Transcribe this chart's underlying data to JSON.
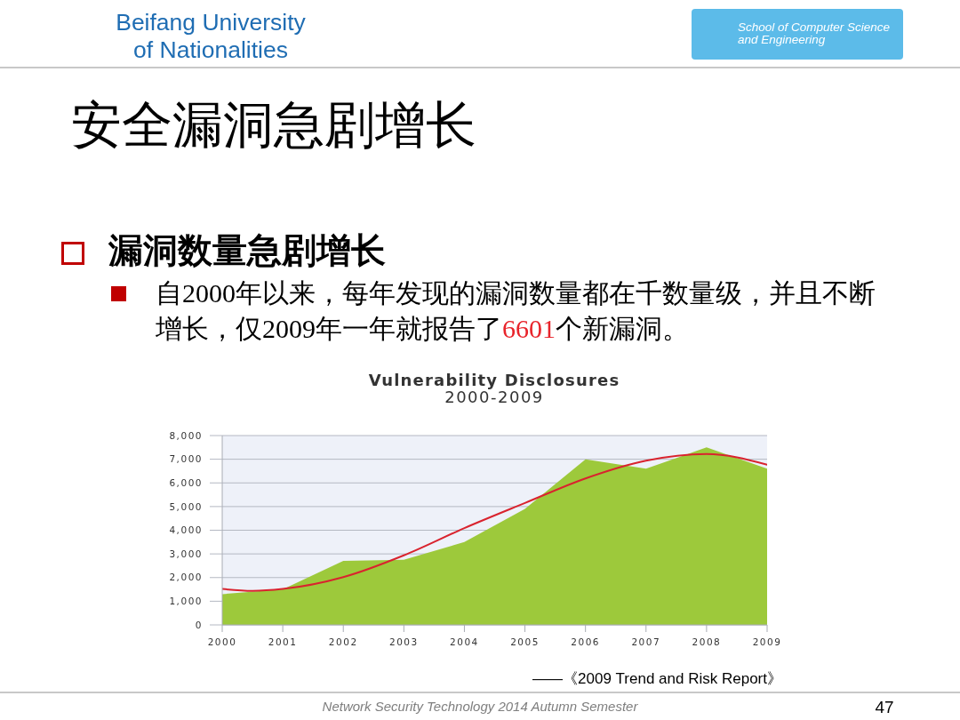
{
  "chart_data": {
    "type": "area",
    "title": "Vulnerability Disclosures",
    "subtitle": "2000-2009",
    "x": [
      2000,
      2001,
      2002,
      2003,
      2004,
      2005,
      2006,
      2007,
      2008,
      2009
    ],
    "xlim": [
      2000,
      2009
    ],
    "xticks": [
      2000,
      2001,
      2002,
      2003,
      2004,
      2005,
      2006,
      2007,
      2008,
      2009
    ],
    "ylim": [
      0,
      8000
    ],
    "yticks": [
      0,
      {
        "value": 1000,
        "label": "1,000"
      },
      {
        "value": 2000,
        "label": "2,000"
      },
      {
        "value": 3000,
        "label": "3,000"
      },
      {
        "value": 4000,
        "label": "4,000"
      },
      {
        "value": 5000,
        "label": "5,000"
      },
      {
        "value": 6000,
        "label": "6,000"
      },
      {
        "value": 7000,
        "label": "7,000"
      },
      {
        "value": 8000,
        "label": "8,000"
      }
    ],
    "grid": "y",
    "series": [
      {
        "color": "#9dc93b",
        "values": [
          1300,
          1500,
          2700,
          2750,
          3500,
          4900,
          7000,
          6600,
          7500,
          6600
        ]
      },
      {
        "type": "line",
        "color": "#d9232e",
        "x": [
          2000,
          2000.5,
          2001,
          2002,
          2003,
          2004,
          2005,
          2006,
          2007,
          2008,
          2009
        ],
        "values": [
          1520,
          1440,
          1520,
          2020,
          2940,
          4090,
          5150,
          6190,
          6940,
          7220,
          6770
        ]
      }
    ],
    "annotations": [
      "Beifang University of Nationalities",
      "School of Computer Science and Engineering",
      "安全漏洞急剧增长",
      "漏洞数量急剧增长",
      "自2000年以来，每年发现的漏洞数量都在千数量级，并且不断",
      "增长，仅2009年一年就报告了",
      "6601",
      "个新漏洞。",
      "——《2009 Trend and Risk Report》",
      "Network Security Technology 2014 Autumn Semester",
      "47"
    ]
  }
}
